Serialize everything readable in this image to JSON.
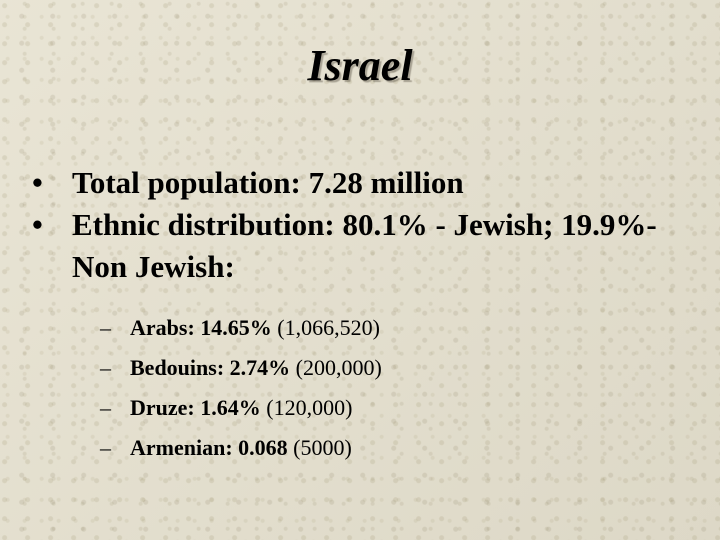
{
  "title": "Israel",
  "bullets": [
    {
      "text": "Total population: 7.28 million"
    },
    {
      "text": "Ethnic distribution: 80.1% - Jewish; 19.9%- Non Jewish:"
    }
  ],
  "bullet_glyph": "•",
  "dash_glyph": "–",
  "sub_items": [
    {
      "label": "Arabs: 14.65%",
      "count": "(1,066,520)"
    },
    {
      "label": "Bedouins: 2.74%",
      "count": "(200,000)"
    },
    {
      "label": "Druze: 1.64%",
      "count": "(120,000)"
    },
    {
      "label": "Armenian: 0.068",
      "count": "(5000)"
    }
  ]
}
